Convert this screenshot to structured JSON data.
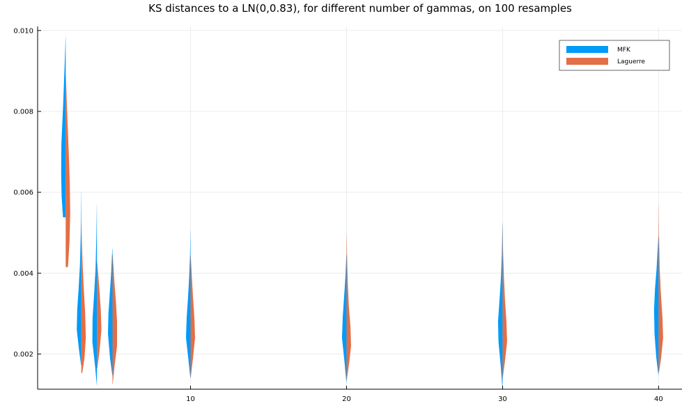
{
  "chart_data": {
    "type": "violin",
    "title": "KS distances to a LN(0,0.83), for different number of gammas, on 100 resamples",
    "xlabel": "",
    "ylabel": "",
    "xlim": [
      0.2,
      41.5
    ],
    "ylim": [
      0.00113,
      0.0101
    ],
    "x_ticks": [
      {
        "value": 10,
        "label": "10"
      },
      {
        "value": 20,
        "label": "20"
      },
      {
        "value": 30,
        "label": "30"
      },
      {
        "value": 40,
        "label": "40"
      }
    ],
    "y_ticks": [
      {
        "value": 0.002,
        "label": "0.002"
      },
      {
        "value": 0.004,
        "label": "0.004"
      },
      {
        "value": 0.006,
        "label": "0.006"
      },
      {
        "value": 0.008,
        "label": "0.008"
      },
      {
        "value": 0.01,
        "label": "0.010"
      }
    ],
    "grid": true,
    "legend_position": "top-right",
    "series": [
      {
        "name": "MFK",
        "color": "#009AF9",
        "side": "left",
        "groups": [
          {
            "x": 2,
            "min": 0.00538,
            "max": 0.00985,
            "profile": [
              [
                0.00538,
                0.6
              ],
              [
                0.0059,
                0.9
              ],
              [
                0.0065,
                1.0
              ],
              [
                0.0072,
                0.95
              ],
              [
                0.0077,
                0.75
              ],
              [
                0.0082,
                0.55
              ],
              [
                0.0088,
                0.35
              ],
              [
                0.0094,
                0.15
              ],
              [
                0.00985,
                0.02
              ]
            ]
          },
          {
            "x": 3,
            "min": 0.00172,
            "max": 0.00602,
            "profile": [
              [
                0.00172,
                0.05
              ],
              [
                0.0021,
                0.5
              ],
              [
                0.0026,
                1.0
              ],
              [
                0.0031,
                0.9
              ],
              [
                0.0036,
                0.6
              ],
              [
                0.0042,
                0.3
              ],
              [
                0.005,
                0.12
              ],
              [
                0.00602,
                0.02
              ]
            ]
          },
          {
            "x": 4,
            "min": 0.00122,
            "max": 0.0057,
            "profile": [
              [
                0.00122,
                0.02
              ],
              [
                0.0017,
                0.4
              ],
              [
                0.0023,
                1.0
              ],
              [
                0.0029,
                0.95
              ],
              [
                0.0035,
                0.6
              ],
              [
                0.0041,
                0.3
              ],
              [
                0.0049,
                0.12
              ],
              [
                0.0057,
                0.02
              ]
            ]
          },
          {
            "x": 5,
            "min": 0.00148,
            "max": 0.0046,
            "profile": [
              [
                0.00148,
                0.05
              ],
              [
                0.0019,
                0.55
              ],
              [
                0.0025,
                1.0
              ],
              [
                0.003,
                0.9
              ],
              [
                0.0035,
                0.6
              ],
              [
                0.004,
                0.3
              ],
              [
                0.0046,
                0.05
              ]
            ]
          },
          {
            "x": 10,
            "min": 0.00142,
            "max": 0.00505,
            "profile": [
              [
                0.00142,
                0.05
              ],
              [
                0.0019,
                0.5
              ],
              [
                0.0024,
                1.0
              ],
              [
                0.0029,
                0.85
              ],
              [
                0.0034,
                0.55
              ],
              [
                0.0039,
                0.3
              ],
              [
                0.0044,
                0.12
              ],
              [
                0.00505,
                0.02
              ]
            ]
          },
          {
            "x": 20,
            "min": 0.00128,
            "max": 0.00445,
            "profile": [
              [
                0.00128,
                0.02
              ],
              [
                0.0018,
                0.45
              ],
              [
                0.0024,
                1.0
              ],
              [
                0.0029,
                0.85
              ],
              [
                0.0034,
                0.55
              ],
              [
                0.0039,
                0.25
              ],
              [
                0.00445,
                0.04
              ]
            ]
          },
          {
            "x": 30,
            "min": 0.00112,
            "max": 0.00525,
            "profile": [
              [
                0.00112,
                0.02
              ],
              [
                0.0017,
                0.4
              ],
              [
                0.0023,
                0.9
              ],
              [
                0.0028,
                1.0
              ],
              [
                0.0033,
                0.7
              ],
              [
                0.0039,
                0.35
              ],
              [
                0.0045,
                0.15
              ],
              [
                0.00525,
                0.02
              ]
            ]
          },
          {
            "x": 40,
            "min": 0.00148,
            "max": 0.0049,
            "profile": [
              [
                0.00148,
                0.05
              ],
              [
                0.0019,
                0.5
              ],
              [
                0.0025,
                0.9
              ],
              [
                0.0031,
                1.0
              ],
              [
                0.0036,
                0.8
              ],
              [
                0.0041,
                0.45
              ],
              [
                0.0049,
                0.05
              ]
            ]
          }
        ]
      },
      {
        "name": "Laguerre",
        "color": "#E26F46",
        "side": "right",
        "groups": [
          {
            "x": 2,
            "min": 0.00415,
            "max": 0.0089,
            "profile": [
              [
                0.00415,
                0.5
              ],
              [
                0.0048,
                0.85
              ],
              [
                0.0055,
                1.0
              ],
              [
                0.0062,
                0.9
              ],
              [
                0.0069,
                0.7
              ],
              [
                0.0076,
                0.45
              ],
              [
                0.0082,
                0.25
              ],
              [
                0.0089,
                0.04
              ]
            ]
          },
          {
            "x": 3,
            "min": 0.00153,
            "max": 0.00525,
            "profile": [
              [
                0.00153,
                0.2
              ],
              [
                0.0019,
                0.7
              ],
              [
                0.0024,
                1.0
              ],
              [
                0.003,
                0.85
              ],
              [
                0.0036,
                0.55
              ],
              [
                0.0042,
                0.3
              ],
              [
                0.0048,
                0.12
              ],
              [
                0.00525,
                0.02
              ]
            ]
          },
          {
            "x": 4,
            "min": 0.00165,
            "max": 0.0043,
            "profile": [
              [
                0.00165,
                0.1
              ],
              [
                0.0021,
                0.6
              ],
              [
                0.0026,
                1.0
              ],
              [
                0.0031,
                0.85
              ],
              [
                0.0036,
                0.55
              ],
              [
                0.0043,
                0.05
              ]
            ]
          },
          {
            "x": 5,
            "min": 0.00125,
            "max": 0.00445,
            "profile": [
              [
                0.00125,
                0.05
              ],
              [
                0.0017,
                0.45
              ],
              [
                0.0022,
                1.0
              ],
              [
                0.0028,
                1.0
              ],
              [
                0.0033,
                0.75
              ],
              [
                0.0038,
                0.4
              ],
              [
                0.00445,
                0.05
              ]
            ]
          },
          {
            "x": 10,
            "min": 0.00142,
            "max": 0.00443,
            "profile": [
              [
                0.00142,
                0.05
              ],
              [
                0.0019,
                0.55
              ],
              [
                0.0024,
                1.0
              ],
              [
                0.0029,
                0.85
              ],
              [
                0.0034,
                0.55
              ],
              [
                0.0039,
                0.3
              ],
              [
                0.00443,
                0.05
              ]
            ]
          },
          {
            "x": 20,
            "min": 0.00135,
            "max": 0.00497,
            "profile": [
              [
                0.00135,
                0.05
              ],
              [
                0.0018,
                0.6
              ],
              [
                0.0022,
                1.0
              ],
              [
                0.0027,
                0.85
              ],
              [
                0.0032,
                0.5
              ],
              [
                0.0038,
                0.25
              ],
              [
                0.0044,
                0.12
              ],
              [
                0.00497,
                0.02
              ]
            ]
          },
          {
            "x": 30,
            "min": 0.00142,
            "max": 0.0052,
            "profile": [
              [
                0.00142,
                0.05
              ],
              [
                0.0018,
                0.5
              ],
              [
                0.0023,
                1.0
              ],
              [
                0.0028,
                0.85
              ],
              [
                0.0033,
                0.55
              ],
              [
                0.0039,
                0.3
              ],
              [
                0.0045,
                0.12
              ],
              [
                0.0052,
                0.02
              ]
            ]
          },
          {
            "x": 40,
            "min": 0.00155,
            "max": 0.0057,
            "profile": [
              [
                0.00155,
                0.1
              ],
              [
                0.0019,
                0.55
              ],
              [
                0.0024,
                1.0
              ],
              [
                0.0029,
                0.85
              ],
              [
                0.0035,
                0.5
              ],
              [
                0.0041,
                0.25
              ],
              [
                0.0049,
                0.1
              ],
              [
                0.0057,
                0.02
              ]
            ]
          }
        ]
      }
    ]
  }
}
